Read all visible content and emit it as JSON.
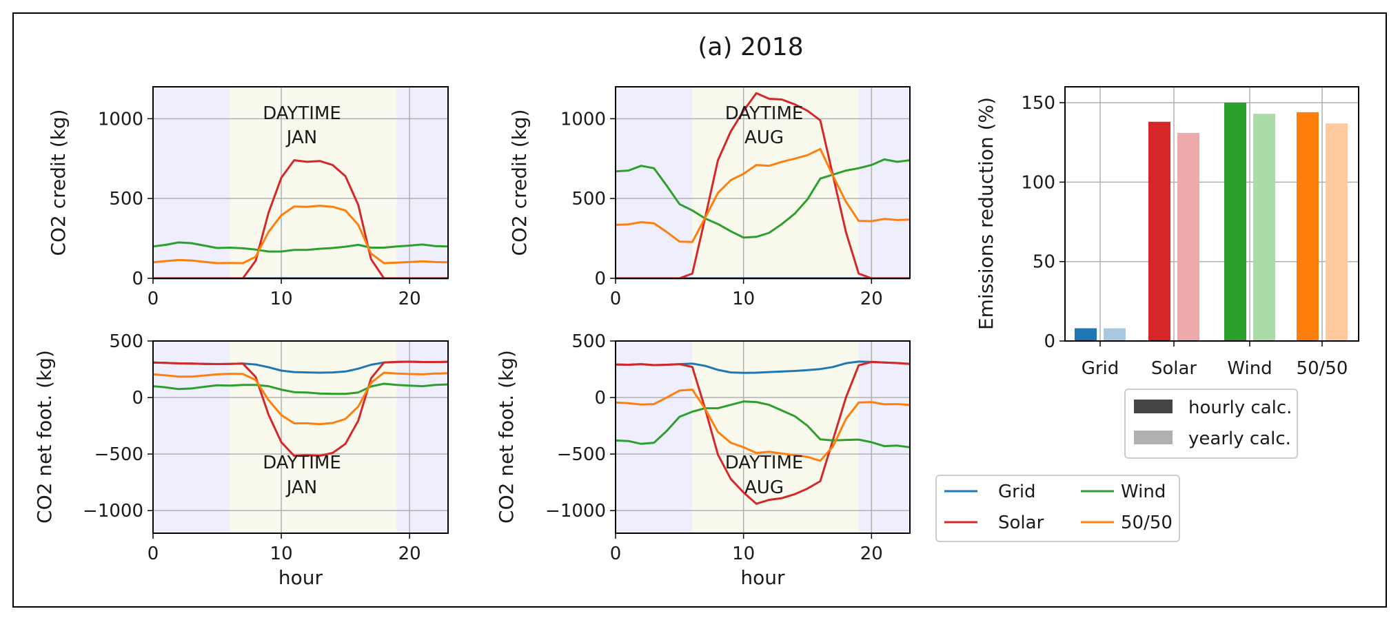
{
  "figure_title": "(a) 2018",
  "colors": {
    "grid": "#1f77b4",
    "solar": "#d62728",
    "wind": "#2ca02c",
    "fifty": "#ff7f0e",
    "night_shade": "#eeeefc",
    "day_shade": "#f9f9ee"
  },
  "chart_data": [
    {
      "id": "credit_jan",
      "type": "line",
      "ylabel": "CO2 credit (kg)",
      "xlabel": "",
      "annotation_line1": "DAYTIME",
      "annotation_line2": "JAN",
      "xlim": [
        0,
        23
      ],
      "ylim": [
        0,
        1200
      ],
      "xticks": [
        "0",
        "10",
        "20"
      ],
      "yticks": [
        "0",
        "500",
        "1000"
      ],
      "daytime": [
        6,
        19
      ],
      "x": [
        0,
        1,
        2,
        3,
        4,
        5,
        6,
        7,
        8,
        9,
        10,
        11,
        12,
        13,
        14,
        15,
        16,
        17,
        18,
        19,
        20,
        21,
        22,
        23
      ],
      "series": [
        {
          "name": "Grid",
          "color": "#1f77b4",
          "values": [
            0,
            0,
            0,
            0,
            0,
            0,
            0,
            0,
            0,
            0,
            0,
            0,
            0,
            0,
            0,
            0,
            0,
            0,
            0,
            0,
            0,
            0,
            0,
            0
          ]
        },
        {
          "name": "Solar",
          "color": "#d62728",
          "values": [
            0,
            0,
            0,
            0,
            0,
            0,
            0,
            0,
            110,
            410,
            630,
            740,
            730,
            735,
            710,
            640,
            460,
            120,
            0,
            0,
            0,
            0,
            0,
            0
          ]
        },
        {
          "name": "Wind",
          "color": "#2ca02c",
          "values": [
            200,
            210,
            225,
            220,
            205,
            190,
            192,
            188,
            180,
            168,
            168,
            178,
            178,
            185,
            190,
            198,
            210,
            192,
            192,
            200,
            205,
            212,
            202,
            200
          ]
        },
        {
          "name": "50/50",
          "color": "#ff7f0e",
          "values": [
            100,
            108,
            115,
            112,
            103,
            95,
            96,
            95,
            135,
            290,
            395,
            450,
            448,
            455,
            448,
            425,
            335,
            155,
            95,
            98,
            102,
            106,
            102,
            100
          ]
        }
      ]
    },
    {
      "id": "credit_aug",
      "type": "line",
      "ylabel": "CO2 credit (kg)",
      "xlabel": "",
      "annotation_line1": "DAYTIME",
      "annotation_line2": "AUG",
      "xlim": [
        0,
        23
      ],
      "ylim": [
        0,
        1200
      ],
      "xticks": [
        "0",
        "10",
        "20"
      ],
      "yticks": [
        "0",
        "500",
        "1000"
      ],
      "daytime": [
        6,
        19
      ],
      "x": [
        0,
        1,
        2,
        3,
        4,
        5,
        6,
        7,
        8,
        9,
        10,
        11,
        12,
        13,
        14,
        15,
        16,
        17,
        18,
        19,
        20,
        21,
        22,
        23
      ],
      "series": [
        {
          "name": "Grid",
          "color": "#1f77b4",
          "values": [
            0,
            0,
            0,
            0,
            0,
            0,
            0,
            0,
            0,
            0,
            0,
            0,
            0,
            0,
            0,
            0,
            0,
            0,
            0,
            0,
            0,
            0,
            0,
            0
          ]
        },
        {
          "name": "Solar",
          "color": "#d62728",
          "values": [
            0,
            0,
            0,
            0,
            0,
            0,
            30,
            380,
            740,
            920,
            1050,
            1160,
            1125,
            1120,
            1090,
            1050,
            990,
            640,
            290,
            30,
            0,
            0,
            0,
            0
          ]
        },
        {
          "name": "Wind",
          "color": "#2ca02c",
          "values": [
            670,
            675,
            705,
            690,
            580,
            465,
            425,
            375,
            340,
            295,
            255,
            260,
            285,
            340,
            405,
            495,
            625,
            650,
            675,
            690,
            710,
            745,
            730,
            740
          ]
        },
        {
          "name": "50/50",
          "color": "#ff7f0e",
          "values": [
            335,
            338,
            352,
            345,
            290,
            230,
            228,
            380,
            535,
            615,
            655,
            710,
            705,
            730,
            750,
            772,
            810,
            640,
            480,
            360,
            358,
            372,
            365,
            368
          ]
        }
      ]
    },
    {
      "id": "net_jan",
      "type": "line",
      "ylabel": "CO2 net foot. (kg)",
      "xlabel": "hour",
      "annotation_line1": "DAYTIME",
      "annotation_line2": "JAN",
      "xlim": [
        0,
        23
      ],
      "ylim": [
        -1200,
        500
      ],
      "xticks": [
        "0",
        "10",
        "20"
      ],
      "yticks": [
        "−1000",
        "−500",
        "0",
        "500"
      ],
      "daytime": [
        6,
        19
      ],
      "x": [
        0,
        1,
        2,
        3,
        4,
        5,
        6,
        7,
        8,
        9,
        10,
        11,
        12,
        13,
        14,
        15,
        16,
        17,
        18,
        19,
        20,
        21,
        22,
        23
      ],
      "series": [
        {
          "name": "Grid",
          "color": "#1f77b4",
          "values": [
            310,
            307,
            302,
            300,
            298,
            296,
            298,
            300,
            292,
            268,
            238,
            225,
            222,
            220,
            222,
            230,
            255,
            290,
            310,
            315,
            317,
            314,
            314,
            316
          ]
        },
        {
          "name": "Solar",
          "color": "#d62728",
          "values": [
            310,
            307,
            302,
            300,
            298,
            296,
            298,
            300,
            182,
            -150,
            -395,
            -515,
            -510,
            -515,
            -490,
            -410,
            -205,
            170,
            310,
            315,
            317,
            314,
            314,
            316
          ]
        },
        {
          "name": "Wind",
          "color": "#2ca02c",
          "values": [
            100,
            90,
            75,
            80,
            95,
            108,
            106,
            112,
            112,
            100,
            70,
            48,
            45,
            35,
            32,
            32,
            45,
            98,
            122,
            112,
            105,
            100,
            112,
            116
          ]
        },
        {
          "name": "50/50",
          "color": "#ff7f0e",
          "values": [
            205,
            196,
            185,
            185,
            195,
            205,
            210,
            208,
            155,
            -22,
            -155,
            -228,
            -228,
            -235,
            -225,
            -190,
            -80,
            130,
            220,
            212,
            208,
            205,
            212,
            215
          ]
        }
      ]
    },
    {
      "id": "net_aug",
      "type": "line",
      "ylabel": "CO2 net foot. (kg)",
      "xlabel": "hour",
      "annotation_line1": "DAYTIME",
      "annotation_line2": "AUG",
      "xlim": [
        0,
        23
      ],
      "ylim": [
        -1200,
        500
      ],
      "xticks": [
        "0",
        "10",
        "20"
      ],
      "yticks": [
        "−1000",
        "−500",
        "0",
        "500"
      ],
      "daytime": [
        6,
        19
      ],
      "x": [
        0,
        1,
        2,
        3,
        4,
        5,
        6,
        7,
        8,
        9,
        10,
        11,
        12,
        13,
        14,
        15,
        16,
        17,
        18,
        19,
        20,
        21,
        22,
        23
      ],
      "series": [
        {
          "name": "Grid",
          "color": "#1f77b4",
          "values": [
            292,
            290,
            295,
            287,
            290,
            295,
            300,
            280,
            245,
            222,
            218,
            220,
            225,
            230,
            235,
            242,
            252,
            270,
            303,
            318,
            315,
            310,
            305,
            298
          ]
        },
        {
          "name": "Solar",
          "color": "#d62728",
          "values": [
            292,
            290,
            295,
            287,
            290,
            295,
            270,
            -100,
            -505,
            -720,
            -840,
            -940,
            -905,
            -890,
            -855,
            -805,
            -740,
            -370,
            0,
            285,
            315,
            310,
            305,
            298
          ]
        },
        {
          "name": "Wind",
          "color": "#2ca02c",
          "values": [
            -380,
            -385,
            -410,
            -400,
            -295,
            -170,
            -125,
            -95,
            -95,
            -65,
            -35,
            -40,
            -65,
            -115,
            -165,
            -250,
            -370,
            -380,
            -375,
            -372,
            -395,
            -430,
            -425,
            -440
          ]
        },
        {
          "name": "50/50",
          "color": "#ff7f0e",
          "values": [
            -45,
            -50,
            -62,
            -58,
            0,
            62,
            70,
            -100,
            -305,
            -400,
            -440,
            -490,
            -480,
            -495,
            -510,
            -525,
            -560,
            -430,
            -190,
            -45,
            -40,
            -60,
            -58,
            -65
          ]
        }
      ]
    },
    {
      "id": "emissions",
      "type": "bar",
      "ylabel": "Emissions reduction (%)",
      "categories": [
        "Grid",
        "Solar",
        "Wind",
        "50/50"
      ],
      "ylim": [
        0,
        160
      ],
      "yticks": [
        "0",
        "50",
        "100",
        "150"
      ],
      "series": [
        {
          "name": "hourly calc.",
          "values": [
            8,
            138,
            150,
            144
          ]
        },
        {
          "name": "yearly calc.",
          "values": [
            8,
            131,
            143,
            137
          ]
        }
      ],
      "bar_colors": {
        "hourly": [
          "#1f77b4",
          "#d62728",
          "#2ca02c",
          "#ff7f0e"
        ],
        "yearly": [
          "#a6c8e2",
          "#eeaaaa",
          "#abdba6",
          "#ffcb9e"
        ]
      }
    }
  ],
  "legend_methods": [
    {
      "label": "hourly calc.",
      "color": "#444444"
    },
    {
      "label": "yearly calc.",
      "color": "#b0b0b0"
    }
  ],
  "legend_series": [
    {
      "label": "Grid",
      "color": "#1f77b4"
    },
    {
      "label": "Wind",
      "color": "#2ca02c"
    },
    {
      "label": "Solar",
      "color": "#d62728"
    },
    {
      "label": "50/50",
      "color": "#ff7f0e"
    }
  ]
}
